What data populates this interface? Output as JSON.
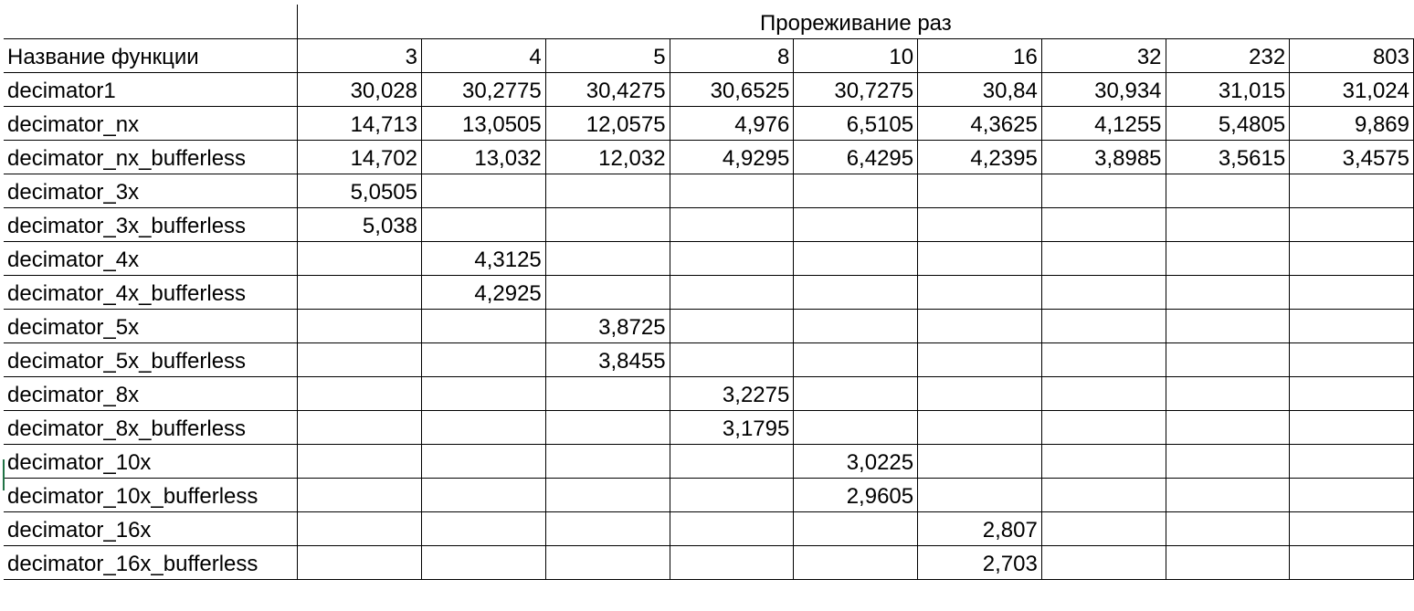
{
  "sheet": {
    "group_header": "Прореживание раз",
    "first_column_header": "Название функции",
    "columns": [
      "3",
      "4",
      "5",
      "8",
      "10",
      "16",
      "32",
      "232",
      "803"
    ],
    "rows": [
      {
        "name": "decimator1",
        "values": [
          "30,028",
          "30,2775",
          "30,4275",
          "30,6525",
          "30,7275",
          "30,84",
          "30,934",
          "31,015",
          "31,024"
        ]
      },
      {
        "name": "decimator_nx",
        "values": [
          "14,713",
          "13,0505",
          "12,0575",
          "4,976",
          "6,5105",
          "4,3625",
          "4,1255",
          "5,4805",
          "9,869"
        ]
      },
      {
        "name": "decimator_nx_bufferless",
        "values": [
          "14,702",
          "13,032",
          "12,032",
          "4,9295",
          "6,4295",
          "4,2395",
          "3,8985",
          "3,5615",
          "3,4575"
        ]
      },
      {
        "name": "decimator_3x",
        "values": [
          "5,0505",
          "",
          "",
          "",
          "",
          "",
          "",
          "",
          ""
        ]
      },
      {
        "name": "decimator_3x_bufferless",
        "values": [
          "5,038",
          "",
          "",
          "",
          "",
          "",
          "",
          "",
          ""
        ]
      },
      {
        "name": "decimator_4x",
        "values": [
          "",
          "4,3125",
          "",
          "",
          "",
          "",
          "",
          "",
          ""
        ]
      },
      {
        "name": "decimator_4x_bufferless",
        "values": [
          "",
          "4,2925",
          "",
          "",
          "",
          "",
          "",
          "",
          ""
        ]
      },
      {
        "name": "decimator_5x",
        "values": [
          "",
          "",
          "3,8725",
          "",
          "",
          "",
          "",
          "",
          ""
        ]
      },
      {
        "name": "decimator_5x_bufferless",
        "values": [
          "",
          "",
          "3,8455",
          "",
          "",
          "",
          "",
          "",
          ""
        ]
      },
      {
        "name": "decimator_8x",
        "values": [
          "",
          "",
          "",
          "3,2275",
          "",
          "",
          "",
          "",
          ""
        ]
      },
      {
        "name": "decimator_8x_bufferless",
        "values": [
          "",
          "",
          "",
          "3,1795",
          "",
          "",
          "",
          "",
          ""
        ]
      },
      {
        "name": "decimator_10x",
        "values": [
          "",
          "",
          "",
          "",
          "3,0225",
          "",
          "",
          "",
          ""
        ]
      },
      {
        "name": "decimator_10x_bufferless",
        "values": [
          "",
          "",
          "",
          "",
          "2,9605",
          "",
          "",
          "",
          ""
        ]
      },
      {
        "name": "decimator_16x",
        "values": [
          "",
          "",
          "",
          "",
          "",
          "2,807",
          "",
          "",
          ""
        ]
      },
      {
        "name": "decimator_16x_bufferless",
        "values": [
          "",
          "",
          "",
          "",
          "",
          "2,703",
          "",
          "",
          ""
        ]
      }
    ]
  }
}
